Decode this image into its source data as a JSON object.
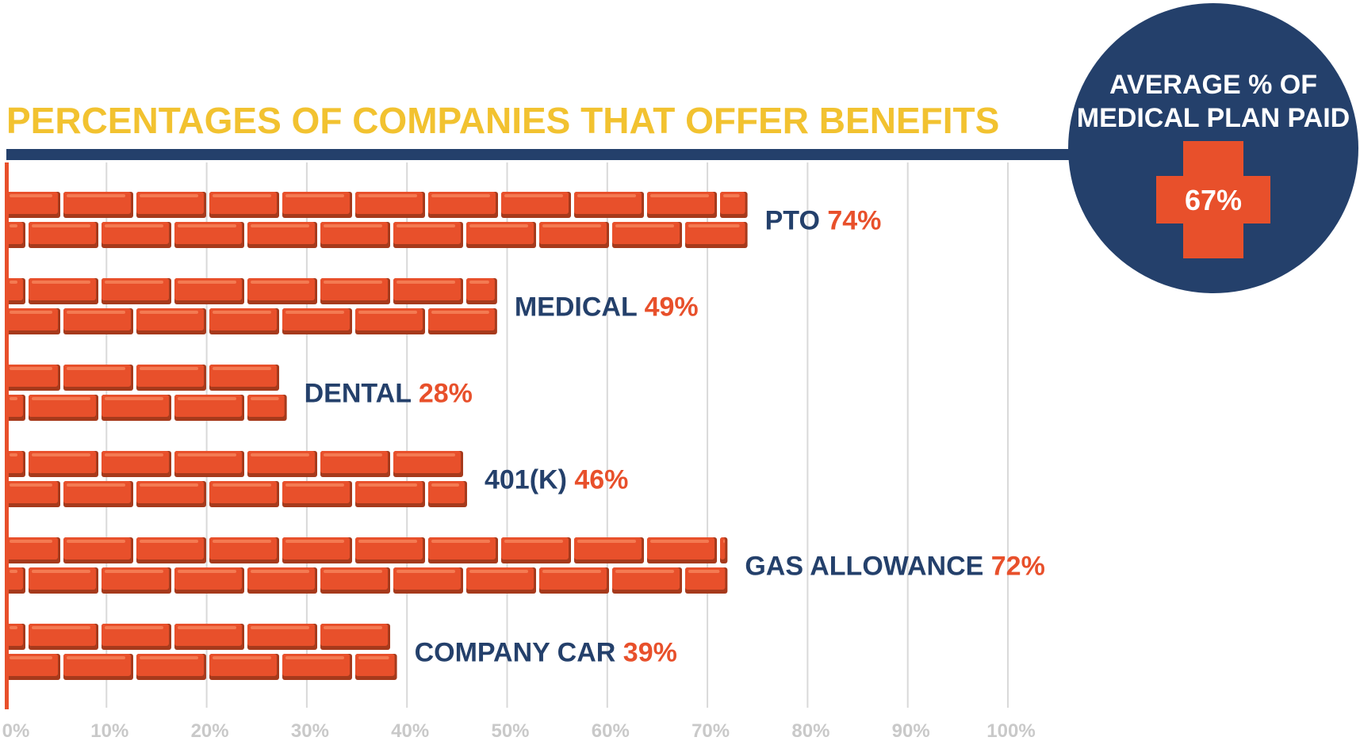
{
  "chart_data": {
    "type": "bar",
    "orientation": "horizontal",
    "title": "PERCENTAGES OF COMPANIES THAT OFFER BENEFITS",
    "categories": [
      "PTO",
      "MEDICAL",
      "DENTAL",
      "401(K)",
      "GAS ALLOWANCE",
      "COMPANY CAR"
    ],
    "values": [
      74,
      49,
      28,
      46,
      72,
      39
    ],
    "value_labels": [
      "74%",
      "49%",
      "28%",
      "46%",
      "72%",
      "39%"
    ],
    "xlim": [
      0,
      100
    ],
    "x_ticks": [
      "0%",
      "10%",
      "20%",
      "30%",
      "40%",
      "50%",
      "60%",
      "70%",
      "80%",
      "90%",
      "100%"
    ],
    "grid": true
  },
  "badge": {
    "title_line1": "AVERAGE % OF",
    "title_line2": "MEDICAL PLAN PAID",
    "value": "67%"
  },
  "colors": {
    "title": "#f2c230",
    "navy": "#24406b",
    "brick": "#e8502b",
    "brick_dark": "#a63a1c",
    "brick_highlight": "#f47a52",
    "grid": "#d9d9d9",
    "tick": "#c9c9c9"
  }
}
